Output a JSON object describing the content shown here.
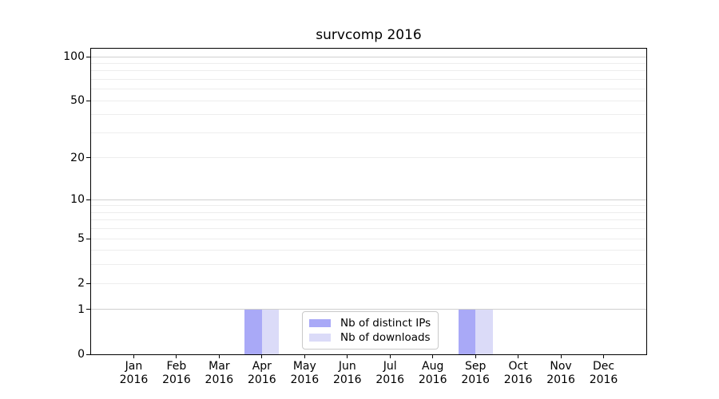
{
  "chart_data": {
    "type": "bar",
    "title": "survcomp 2016",
    "categories": [
      "Jan",
      "Feb",
      "Mar",
      "Apr",
      "May",
      "Jun",
      "Jul",
      "Aug",
      "Sep",
      "Oct",
      "Nov",
      "Dec"
    ],
    "x_tick_second_line": "2016",
    "series": [
      {
        "name": "Nb of distinct IPs",
        "color": "#a9a9f7",
        "values": [
          0,
          0,
          0,
          1,
          0,
          0,
          0,
          0,
          1,
          0,
          0,
          0
        ]
      },
      {
        "name": "Nb of downloads",
        "color": "#dbdbf8",
        "values": [
          0,
          0,
          0,
          1,
          0,
          0,
          0,
          0,
          1,
          0,
          0,
          0
        ]
      }
    ],
    "y_axis": {
      "scale": "log1p",
      "tick_labels": [
        "0",
        "1",
        "2",
        "5",
        "10",
        "20",
        "50",
        "100"
      ],
      "tick_values": [
        0,
        1,
        2,
        5,
        10,
        20,
        50,
        100
      ],
      "decade_gridlines": [
        1,
        10,
        100
      ],
      "minor_gridlines": [
        2,
        3,
        4,
        5,
        6,
        7,
        8,
        9,
        20,
        30,
        40,
        50,
        60,
        70,
        80,
        90
      ],
      "range": [
        0,
        113
      ]
    },
    "xlim_units": [
      -1,
      12
    ],
    "grid": true,
    "legend": {
      "position": "lower center",
      "entries": [
        "Nb of distinct IPs",
        "Nb of downloads"
      ]
    }
  }
}
